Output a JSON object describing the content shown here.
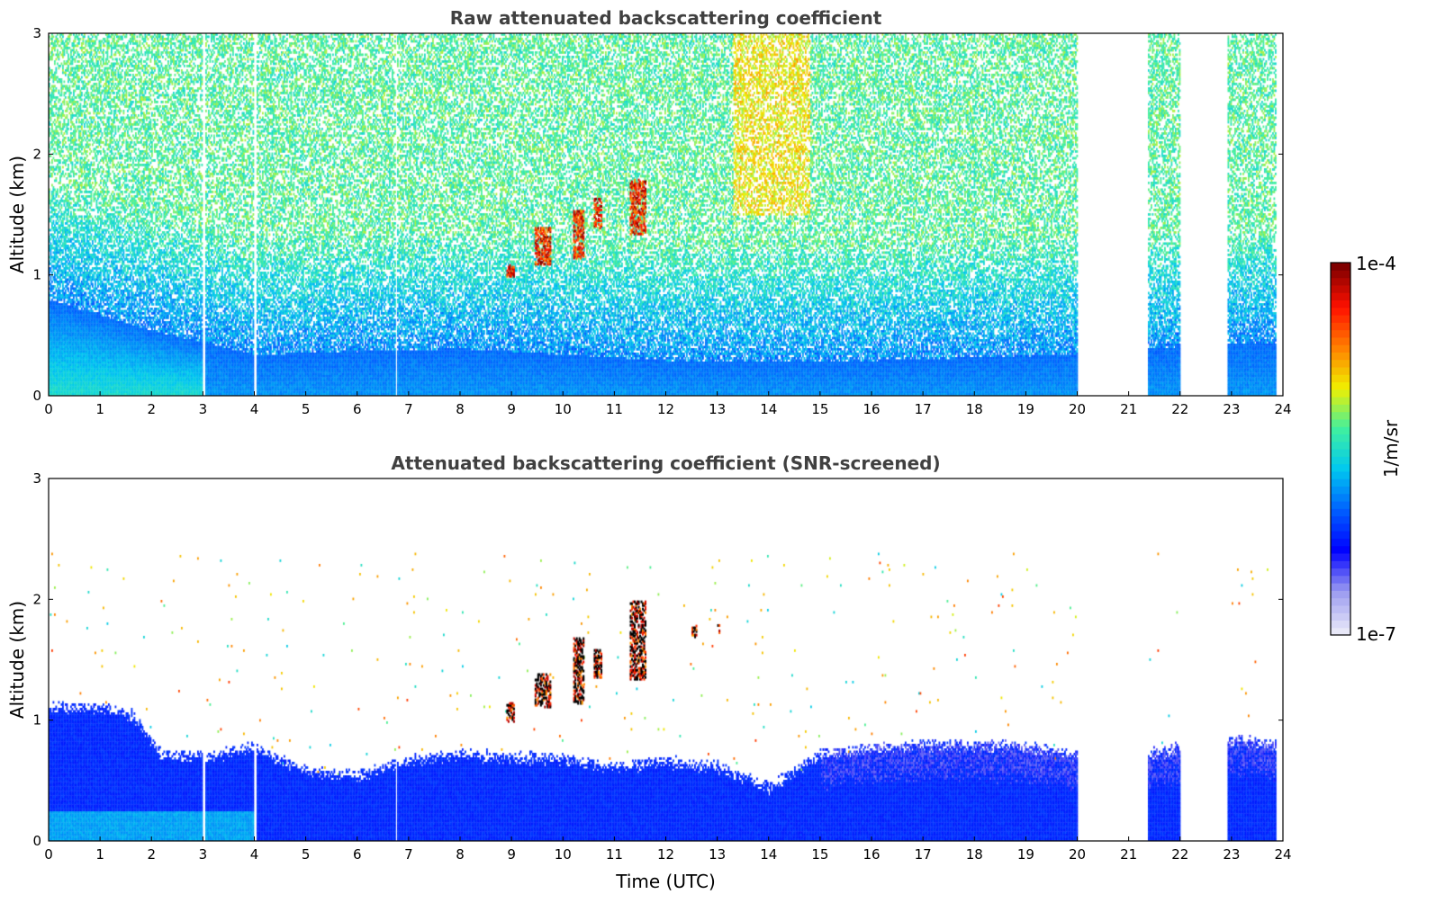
{
  "chart_data": [
    {
      "type": "heatmap",
      "title": "Raw attenuated backscattering coefficient",
      "xlabel": "",
      "ylabel": "Altitude (km)",
      "xlim": [
        0,
        24
      ],
      "ylim": [
        0,
        3
      ],
      "x_ticks": [
        "0",
        "1",
        "2",
        "3",
        "4",
        "5",
        "6",
        "7",
        "8",
        "9",
        "10",
        "11",
        "12",
        "13",
        "14",
        "15",
        "16",
        "17",
        "18",
        "19",
        "20",
        "21",
        "22",
        "23",
        "24"
      ],
      "y_ticks": [
        "0",
        "1",
        "2",
        "3"
      ],
      "data_segments_utc": [
        [
          0,
          20
        ],
        [
          21.35,
          22.0
        ],
        [
          22.9,
          23.85
        ]
      ],
      "missing_profiles_utc": [
        3.0,
        4.0,
        6.75
      ],
      "dense_layer_top_km": [
        [
          0,
          0.8
        ],
        [
          2,
          0.55
        ],
        [
          4,
          0.35
        ],
        [
          8,
          0.4
        ],
        [
          12,
          0.3
        ],
        [
          16,
          0.3
        ],
        [
          20,
          0.35
        ],
        [
          21.5,
          0.4
        ],
        [
          23,
          0.45
        ]
      ],
      "cloud_events": [
        {
          "t0": 8.9,
          "t1": 9.05,
          "z0": 1.0,
          "z1": 1.1
        },
        {
          "t0": 9.45,
          "t1": 9.75,
          "z0": 1.1,
          "z1": 1.4
        },
        {
          "t0": 10.2,
          "t1": 10.4,
          "z0": 1.15,
          "z1": 1.55
        },
        {
          "t0": 10.6,
          "t1": 10.75,
          "z0": 1.4,
          "z1": 1.65
        },
        {
          "t0": 11.3,
          "t1": 11.6,
          "z0": 1.35,
          "z1": 1.8
        }
      ]
    },
    {
      "type": "heatmap",
      "title": "Attenuated backscattering coefficient (SNR-screened)",
      "xlabel": "Time (UTC)",
      "ylabel": "Altitude (km)",
      "xlim": [
        0,
        24
      ],
      "ylim": [
        0,
        3
      ],
      "x_ticks": [
        "0",
        "1",
        "2",
        "3",
        "4",
        "5",
        "6",
        "7",
        "8",
        "9",
        "10",
        "11",
        "12",
        "13",
        "14",
        "15",
        "16",
        "17",
        "18",
        "19",
        "20",
        "21",
        "22",
        "23",
        "24"
      ],
      "y_ticks": [
        "0",
        "1",
        "2",
        "3"
      ],
      "data_segments_utc": [
        [
          0,
          20
        ],
        [
          21.35,
          22.0
        ],
        [
          22.9,
          23.85
        ]
      ],
      "missing_profiles_utc": [
        3.0,
        4.0,
        6.75
      ],
      "boundary_layer_top_km": [
        [
          0,
          1.12
        ],
        [
          1,
          1.1
        ],
        [
          1.6,
          1.05
        ],
        [
          2.2,
          0.72
        ],
        [
          3,
          0.7
        ],
        [
          4,
          0.78
        ],
        [
          5,
          0.58
        ],
        [
          6,
          0.55
        ],
        [
          7,
          0.68
        ],
        [
          8,
          0.72
        ],
        [
          9,
          0.7
        ],
        [
          10,
          0.68
        ],
        [
          11,
          0.62
        ],
        [
          12,
          0.66
        ],
        [
          13,
          0.62
        ],
        [
          14,
          0.45
        ],
        [
          15,
          0.72
        ],
        [
          16,
          0.78
        ],
        [
          17,
          0.8
        ],
        [
          18,
          0.8
        ],
        [
          19,
          0.78
        ],
        [
          20,
          0.72
        ],
        [
          21.35,
          0.72
        ],
        [
          22.0,
          0.78
        ],
        [
          22.9,
          0.85
        ],
        [
          23.85,
          0.8
        ]
      ],
      "cloud_events": [
        {
          "t0": 8.9,
          "t1": 9.05,
          "z0": 1.0,
          "z1": 1.15
        },
        {
          "t0": 9.45,
          "t1": 9.75,
          "z0": 1.12,
          "z1": 1.4
        },
        {
          "t0": 10.2,
          "t1": 10.4,
          "z0": 1.15,
          "z1": 1.7
        },
        {
          "t0": 10.6,
          "t1": 10.75,
          "z0": 1.35,
          "z1": 1.6
        },
        {
          "t0": 11.3,
          "t1": 11.6,
          "z0": 1.35,
          "z1": 2.0
        },
        {
          "t0": 12.5,
          "t1": 12.6,
          "z0": 1.7,
          "z1": 1.8
        },
        {
          "t0": 13.0,
          "t1": 13.05,
          "z0": 1.72,
          "z1": 1.8
        }
      ]
    }
  ],
  "colorbar": {
    "label": "1/m/sr",
    "min_label": "1e-7",
    "max_label": "1e-4",
    "scale": "log",
    "colormap": [
      "#e8e8f8",
      "#9a9af0",
      "#0000ff",
      "#0060ff",
      "#00c8f0",
      "#40f0a0",
      "#f0f000",
      "#ff8000",
      "#ff1000",
      "#800000"
    ]
  }
}
